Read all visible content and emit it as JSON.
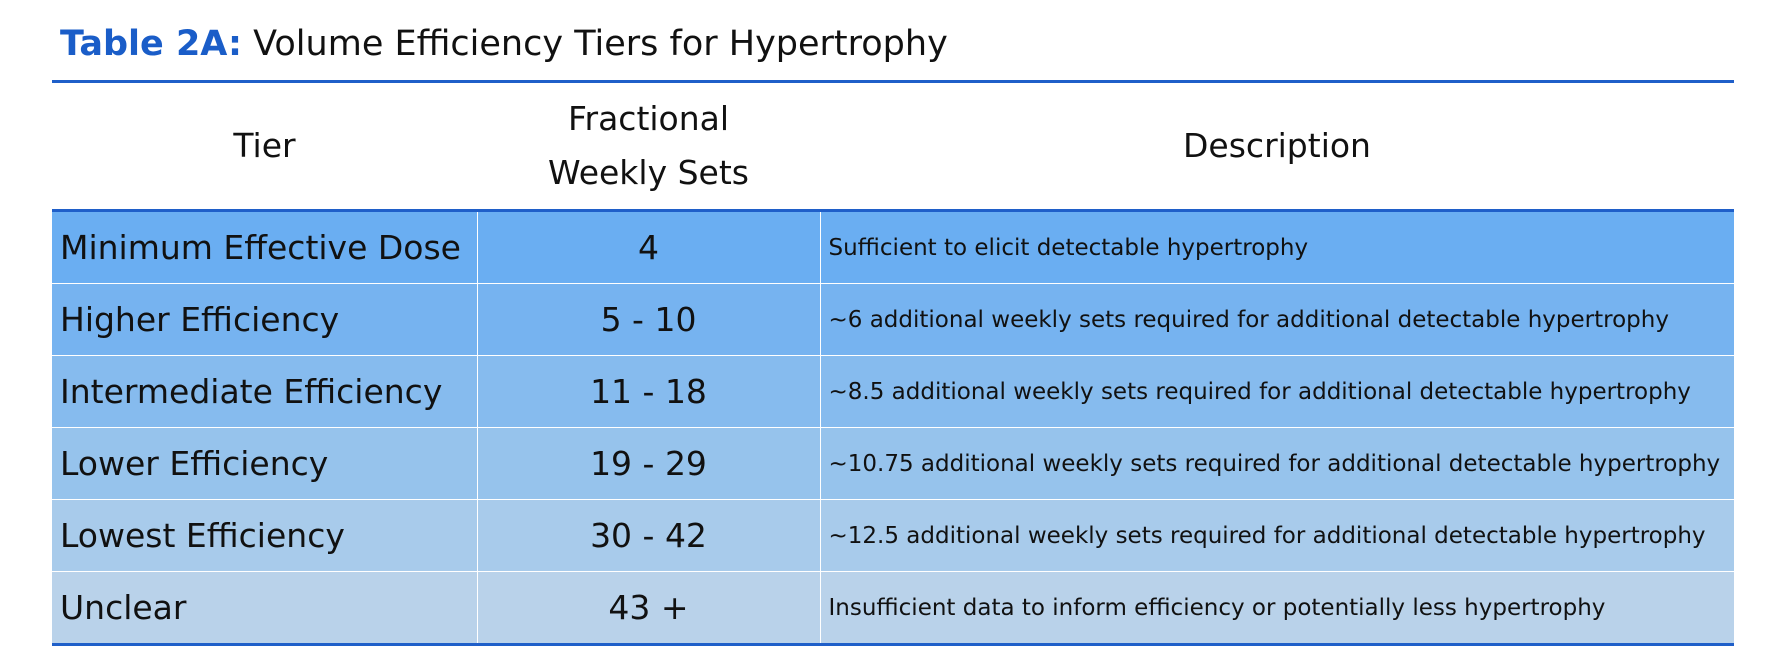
{
  "title": {
    "prefix": "Table 2A:",
    "text": " Volume Efficiency Tiers for Hypertrophy"
  },
  "columns": {
    "tier": "Tier",
    "sets": "Fractional Weekly Sets",
    "description": "Description"
  },
  "rows": [
    {
      "tier": "Minimum Effective Dose",
      "sets": "4",
      "description": "Sufficient to elicit detectable hypertrophy"
    },
    {
      "tier": "Higher Efficiency",
      "sets": "5 - 10",
      "description": "~6 additional weekly sets required for additional detectable hypertrophy"
    },
    {
      "tier": "Intermediate Efficiency",
      "sets": "11 - 18",
      "description": "~8.5 additional weekly sets required for additional detectable hypertrophy"
    },
    {
      "tier": "Lower Efficiency",
      "sets": "19 - 29",
      "description": "~10.75 additional weekly sets required for additional detectable hypertrophy"
    },
    {
      "tier": "Lowest Efficiency",
      "sets": "30 - 42",
      "description": "~12.5 additional weekly sets required for additional detectable hypertrophy"
    },
    {
      "tier": "Unclear",
      "sets": "43 +",
      "description": "Insufficient data to inform efficiency or potentially less hypertrophy"
    }
  ],
  "colors": {
    "accent": "#1a5dc8",
    "rule": "#1f5fc9",
    "row_shades": [
      "#6aaef2",
      "#76b3f0",
      "#86bbee",
      "#96c3ec",
      "#a8cbeb",
      "#b9d2ea"
    ]
  }
}
